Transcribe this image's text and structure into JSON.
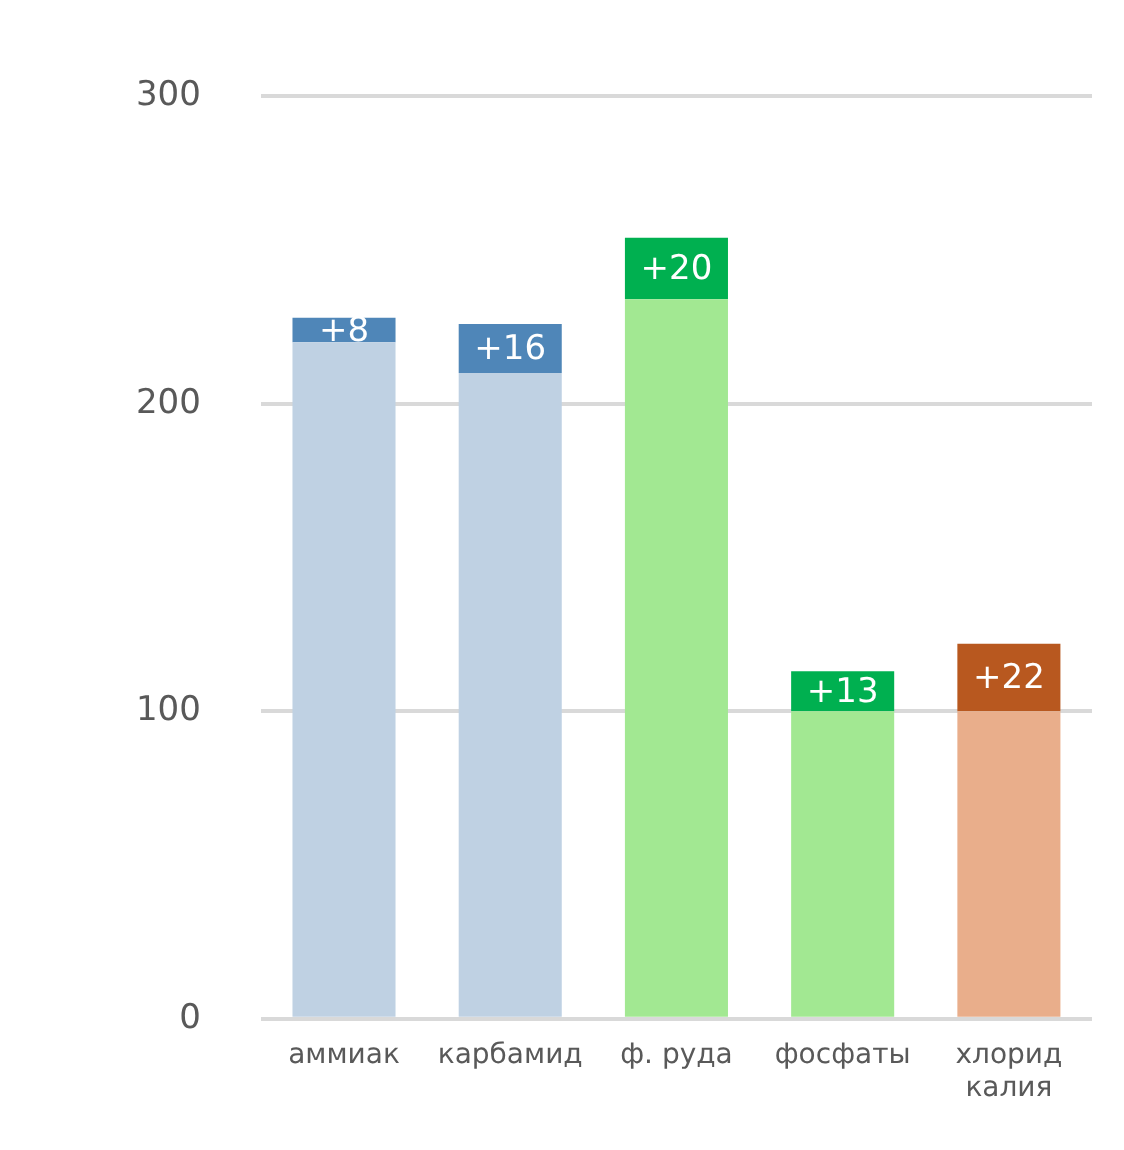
{
  "chart_data": {
    "type": "bar",
    "stacked": true,
    "categories": [
      "аммиак",
      "карбамид",
      "ф. руда",
      "фосфаты",
      "хлорид калия"
    ],
    "series": [
      {
        "colors": [
          "#bfd1e3",
          "#bfd1e3",
          "#a2e892",
          "#a2e892",
          "#e9ae8b"
        ],
        "values": [
          220,
          210,
          234,
          100,
          100
        ]
      },
      {
        "colors": [
          "#4f86b8",
          "#4f86b8",
          "#00b050",
          "#00b050",
          "#b8581f"
        ],
        "values": [
          8,
          16,
          20,
          13,
          22
        ],
        "value_labels": [
          "+8",
          "+16",
          "+20",
          "+13",
          "+22"
        ]
      }
    ],
    "ylim": [
      0,
      300
    ],
    "yticks": [
      0,
      100,
      200,
      300
    ],
    "grid": "y",
    "legend": false
  }
}
